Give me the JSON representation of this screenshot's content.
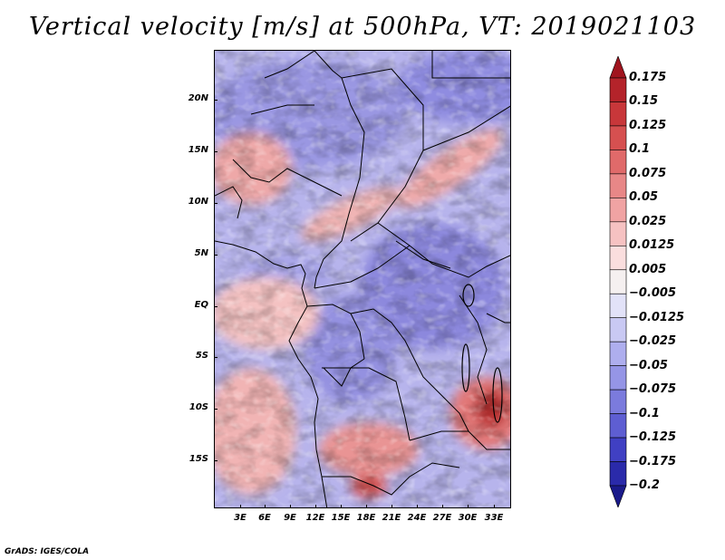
{
  "title": "Vertical velocity [m/s] at 500hPa, VT: 2019021103",
  "map": {
    "region": "Central Africa",
    "field": "vertical velocity",
    "level": "500hPa",
    "valid_time": "2019021103",
    "lat_labels": [
      "20N",
      "15N",
      "10N",
      "5N",
      "EQ",
      "5S",
      "10S",
      "15S"
    ],
    "lon_labels": [
      "3E",
      "6E",
      "9E",
      "12E",
      "15E",
      "18E",
      "21E",
      "24E",
      "27E",
      "30E",
      "33E"
    ]
  },
  "colorbar": {
    "labels": [
      "0.175",
      "0.15",
      "0.125",
      "0.1",
      "0.075",
      "0.05",
      "0.025",
      "0.0125",
      "0.005",
      "−0.005",
      "−0.0125",
      "−0.025",
      "−0.05",
      "−0.075",
      "−0.1",
      "−0.125",
      "−0.175",
      "−0.2"
    ],
    "colors": [
      "#a0141e",
      "#b4232a",
      "#c8373a",
      "#d65050",
      "#e06a6a",
      "#e88787",
      "#f0a3a3",
      "#f6c2c2",
      "#fadede",
      "#f5f0f0",
      "#e2e2f8",
      "#c9c9f3",
      "#aeaeee",
      "#9595e6",
      "#7b7bdd",
      "#5e5ed2",
      "#4040c3",
      "#2a2aaa",
      "#1a1a8a"
    ]
  },
  "credit": "GrADS: IGES/COLA"
}
